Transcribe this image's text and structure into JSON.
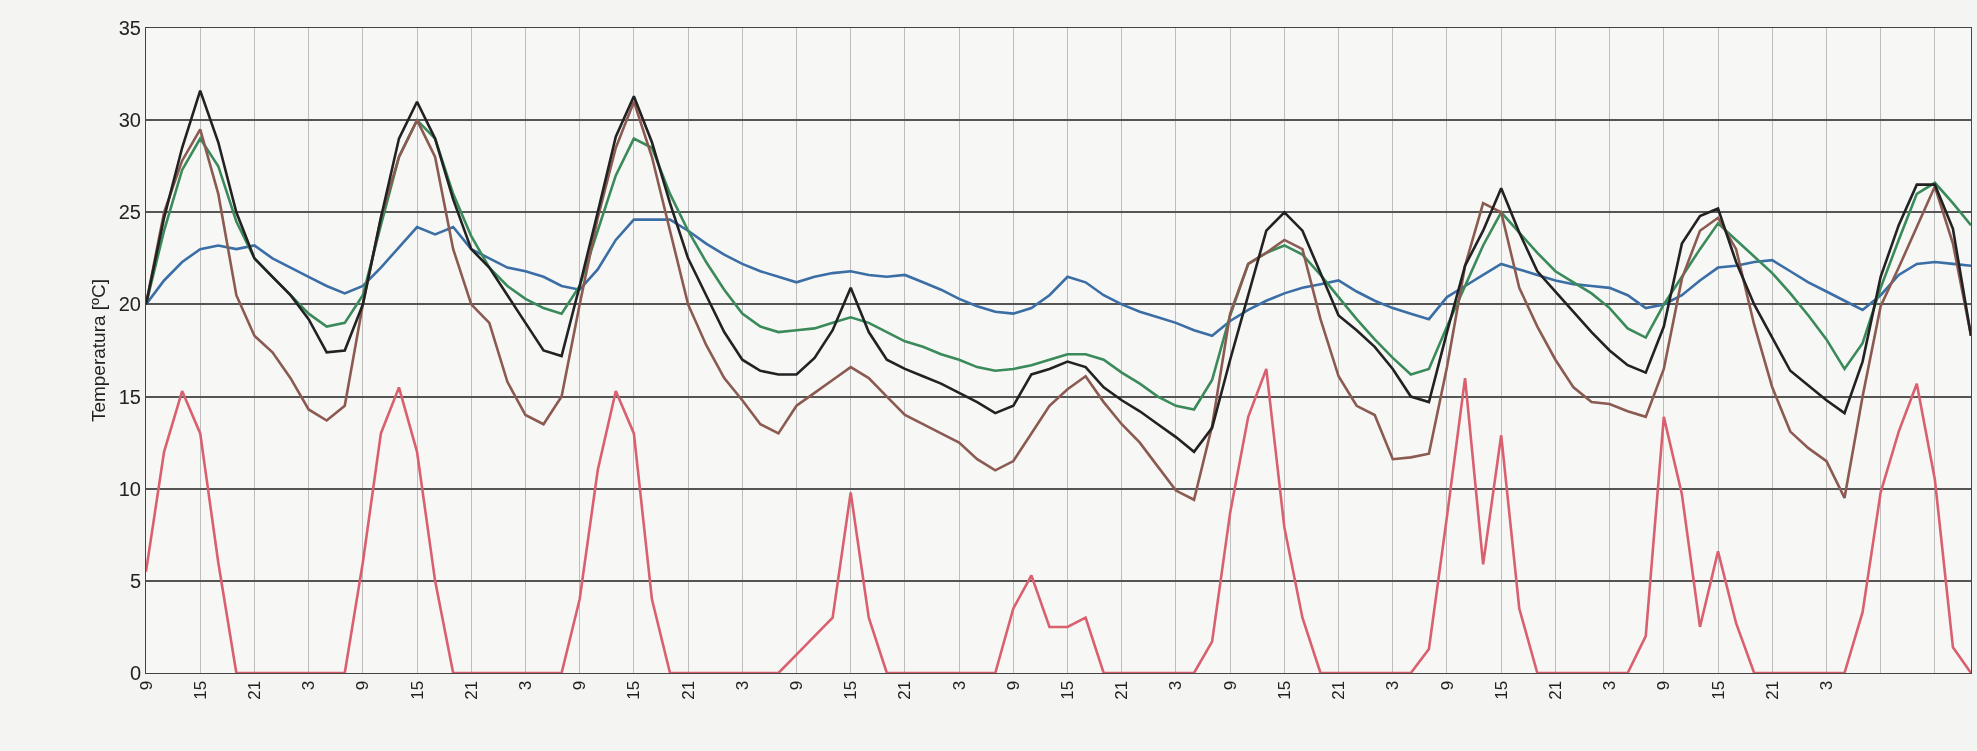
{
  "chart_data": {
    "type": "line",
    "ylabel": "Temperatura [ºC]",
    "categories": [
      "9",
      null,
      null,
      "15",
      null,
      null,
      "21",
      null,
      null,
      "3",
      null,
      null,
      "9",
      null,
      null,
      "15",
      null,
      null,
      "21",
      null,
      null,
      "3",
      null,
      null,
      "9",
      null,
      null,
      "15",
      null,
      null,
      "21",
      null,
      null,
      "3",
      null,
      null,
      "9",
      null,
      null,
      "15",
      null,
      null,
      "21",
      null,
      null,
      "3",
      null,
      null,
      "9",
      null,
      null,
      "15",
      null,
      null,
      "21",
      null,
      null,
      "3",
      null,
      null,
      "9",
      null,
      null,
      "15",
      null,
      null,
      "21",
      null,
      null,
      "3",
      null,
      null,
      "9",
      null,
      null,
      "15",
      null,
      null,
      "21",
      null,
      null,
      "3",
      null,
      null,
      "9",
      null,
      null,
      "15",
      null,
      null,
      "21",
      null,
      null,
      "3",
      null,
      null,
      null,
      null,
      null,
      null,
      null,
      null
    ],
    "ylim": [
      0,
      35
    ],
    "yticks": [
      0,
      5,
      10,
      15,
      20,
      25,
      30,
      35
    ],
    "grid": true,
    "line_style": "solid",
    "series": [
      {
        "color": "#3a6ea5",
        "values": [
          20,
          21.3,
          22.3,
          23,
          23.2,
          23,
          23.2,
          22.5,
          22,
          21.5,
          21,
          20.6,
          21,
          22,
          23.1,
          24.2,
          23.8,
          24.2,
          23,
          22.5,
          22,
          21.8,
          21.5,
          21,
          20.8,
          21.9,
          23.5,
          24.6,
          24.6,
          24.6,
          24,
          23.3,
          22.7,
          22.2,
          21.8,
          21.5,
          21.2,
          21.5,
          21.7,
          21.8,
          21.6,
          21.5,
          21.6,
          21.2,
          20.8,
          20.3,
          19.9,
          19.6,
          19.5,
          19.8,
          20.5,
          21.5,
          21.2,
          20.5,
          20,
          19.6,
          19.3,
          19,
          18.6,
          18.3,
          19.1,
          19.7,
          20.2,
          20.6,
          20.9,
          21.1,
          21.3,
          20.7,
          20.2,
          19.8,
          19.5,
          19.2,
          20.4,
          21,
          21.6,
          22.2,
          21.9,
          21.6,
          21.3,
          21.1,
          21,
          20.9,
          20.5,
          19.8,
          20,
          20.5,
          21.3,
          22,
          22.1,
          22.3,
          22.4,
          21.8,
          21.2,
          20.7,
          20.2,
          19.7,
          20.5,
          21.6,
          22.2,
          22.3,
          22.2,
          22.1
        ]
      },
      {
        "color": "#3a8a5a",
        "values": [
          20,
          24,
          27.3,
          29,
          27.5,
          24.5,
          22.5,
          21.5,
          20.5,
          19.5,
          18.8,
          19,
          20.5,
          24.3,
          28,
          30,
          29,
          26,
          23.7,
          22,
          21,
          20.3,
          19.8,
          19.5,
          21,
          24,
          27,
          29,
          28.5,
          26,
          24,
          22.3,
          20.8,
          19.5,
          18.8,
          18.5,
          18.6,
          18.7,
          19,
          19.3,
          19,
          18.5,
          18,
          17.7,
          17.3,
          17,
          16.6,
          16.4,
          16.5,
          16.7,
          17,
          17.3,
          17.3,
          17,
          16.3,
          15.7,
          15,
          14.5,
          14.3,
          15.9,
          19.4,
          22.2,
          22.8,
          23.2,
          22.7,
          21.6,
          20.4,
          19.2,
          18.1,
          17.1,
          16.2,
          16.5,
          18.8,
          21,
          23.2,
          25,
          23.9,
          22.8,
          21.8,
          21.2,
          20.6,
          19.8,
          18.7,
          18.2,
          20,
          21.5,
          23,
          24.4,
          23.5,
          22.6,
          21.7,
          20.6,
          19.4,
          18.1,
          16.5,
          17.9,
          20.9,
          23.5,
          26,
          26.6,
          25.5,
          24.3
        ]
      },
      {
        "color": "#8b5a50",
        "values": [
          20,
          25,
          27.8,
          29.5,
          26,
          20.5,
          18.3,
          17.4,
          16,
          14.3,
          13.7,
          14.5,
          20,
          24.7,
          28,
          30,
          28,
          23,
          20,
          19,
          15.8,
          14,
          13.5,
          15,
          20,
          24.7,
          28.5,
          31,
          28,
          24,
          20,
          17.8,
          16,
          14.8,
          13.5,
          13,
          14.5,
          15.2,
          15.9,
          16.6,
          16,
          15,
          14,
          13.5,
          13,
          12.5,
          11.6,
          11,
          11.5,
          13,
          14.5,
          15.4,
          16.1,
          14.7,
          13.5,
          12.5,
          11.2,
          9.9,
          9.4,
          13.4,
          19.5,
          22.2,
          22.8,
          23.5,
          23,
          19.2,
          16.1,
          14.5,
          14,
          11.6,
          11.7,
          11.9,
          16.6,
          22.1,
          25.5,
          25,
          20.9,
          18.8,
          17,
          15.5,
          14.7,
          14.6,
          14.2,
          13.9,
          16.5,
          21.4,
          24,
          24.7,
          23,
          18.9,
          15.5,
          13.1,
          12.2,
          11.5,
          9.5,
          15,
          19.9,
          22,
          24.2,
          26.4,
          23.3,
          18.3
        ]
      },
      {
        "color": "#222222",
        "values": [
          20,
          24.7,
          28.5,
          31.6,
          28.8,
          25,
          22.5,
          21.5,
          20.5,
          19.2,
          17.4,
          17.5,
          20,
          24.7,
          29,
          31,
          29,
          25.7,
          23,
          22,
          20.5,
          19,
          17.5,
          17.2,
          21,
          25,
          29.1,
          31.3,
          28.8,
          25.5,
          22.5,
          20.5,
          18.5,
          17,
          16.4,
          16.2,
          16.2,
          17.1,
          18.6,
          20.9,
          18.5,
          17,
          16.5,
          16.1,
          15.7,
          15.2,
          14.7,
          14.1,
          14.5,
          16.2,
          16.5,
          16.9,
          16.6,
          15.5,
          14.8,
          14.2,
          13.5,
          12.8,
          12,
          13.3,
          17,
          20.5,
          24,
          25,
          24,
          21.7,
          19.4,
          18.6,
          17.7,
          16.5,
          15,
          14.7,
          18.5,
          22.1,
          24,
          26.3,
          23.9,
          21.8,
          20.7,
          19.6,
          18.5,
          17.5,
          16.7,
          16.3,
          18.8,
          23.3,
          24.8,
          25.2,
          22.3,
          20,
          18.2,
          16.4,
          15.6,
          14.8,
          14.1,
          16.9,
          21.5,
          24.3,
          26.5,
          26.5,
          24.1,
          18.3
        ]
      },
      {
        "color": "#d9606e",
        "values": [
          5.5,
          12,
          15.3,
          13,
          6,
          0,
          0,
          0,
          0,
          0,
          0,
          0,
          6,
          13,
          15.5,
          12,
          5,
          0,
          0,
          0,
          0,
          0,
          0,
          0,
          4,
          11,
          15.3,
          13,
          4,
          0,
          0,
          0,
          0,
          0,
          0,
          0,
          1,
          2,
          3,
          9.8,
          3,
          0,
          0,
          0,
          0,
          0,
          0,
          0,
          3.5,
          5.3,
          2.5,
          2.5,
          3,
          0,
          0,
          0,
          0,
          0,
          0,
          1.7,
          8.7,
          13.9,
          16.5,
          7.9,
          3,
          0,
          0,
          0,
          0,
          0,
          0,
          1.3,
          8.5,
          16,
          5.9,
          12.9,
          3.5,
          0,
          0,
          0,
          0,
          0,
          0,
          2,
          13.9,
          9.7,
          2.5,
          6.6,
          2.7,
          0,
          0,
          0,
          0,
          0,
          0,
          3.3,
          9.8,
          13.1,
          15.7,
          10.5,
          1.4,
          0
        ]
      }
    ]
  }
}
